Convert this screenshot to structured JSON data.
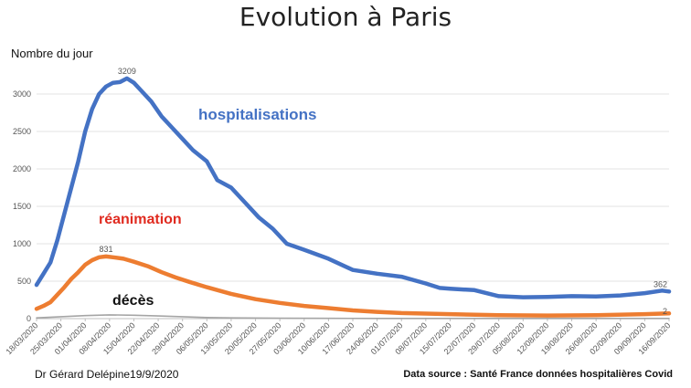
{
  "chart_data": {
    "type": "line",
    "title": "Evolution à Paris",
    "ylabel": "Nombre du jour",
    "ylim": [
      0,
      3500
    ],
    "yticks": [
      0,
      500,
      1000,
      1500,
      2000,
      2500,
      3000
    ],
    "xlim": [
      "18/03/2020",
      "16/09/2020"
    ],
    "xticks": [
      "18/03/2020",
      "25/03/2020",
      "01/04/2020",
      "08/04/2020",
      "15/04/2020",
      "22/04/2020",
      "29/04/2020",
      "06/05/2020",
      "13/05/2020",
      "20/05/2020",
      "27/05/2020",
      "03/06/2020",
      "10/06/2020",
      "17/06/2020",
      "24/06/2020",
      "01/07/2020",
      "08/07/2020",
      "15/07/2020",
      "22/07/2020",
      "29/07/2020",
      "05/08/2020",
      "12/08/2020",
      "19/08/2020",
      "26/08/2020",
      "02/09/2020",
      "09/09/2020",
      "16/09/2020"
    ],
    "grid": true,
    "series": [
      {
        "name": "hospitalisations",
        "color": "#4472C4",
        "points": [
          [
            "18/03/2020",
            450
          ],
          [
            "20/03/2020",
            600
          ],
          [
            "22/03/2020",
            750
          ],
          [
            "24/03/2020",
            1050
          ],
          [
            "26/03/2020",
            1400
          ],
          [
            "28/03/2020",
            1750
          ],
          [
            "30/03/2020",
            2100
          ],
          [
            "01/04/2020",
            2500
          ],
          [
            "03/04/2020",
            2800
          ],
          [
            "05/04/2020",
            3000
          ],
          [
            "07/04/2020",
            3100
          ],
          [
            "09/04/2020",
            3150
          ],
          [
            "11/04/2020",
            3160
          ],
          [
            "13/04/2020",
            3209
          ],
          [
            "15/04/2020",
            3150
          ],
          [
            "17/04/2020",
            3050
          ],
          [
            "20/04/2020",
            2900
          ],
          [
            "23/04/2020",
            2700
          ],
          [
            "26/04/2020",
            2550
          ],
          [
            "29/04/2020",
            2400
          ],
          [
            "02/05/2020",
            2250
          ],
          [
            "06/05/2020",
            2100
          ],
          [
            "09/05/2020",
            1850
          ],
          [
            "13/05/2020",
            1750
          ],
          [
            "17/05/2020",
            1550
          ],
          [
            "21/05/2020",
            1350
          ],
          [
            "25/05/2020",
            1200
          ],
          [
            "29/05/2020",
            1000
          ],
          [
            "03/06/2020",
            920
          ],
          [
            "10/06/2020",
            800
          ],
          [
            "17/06/2020",
            650
          ],
          [
            "24/06/2020",
            600
          ],
          [
            "01/07/2020",
            560
          ],
          [
            "08/07/2020",
            470
          ],
          [
            "12/07/2020",
            410
          ],
          [
            "15/07/2020",
            400
          ],
          [
            "22/07/2020",
            380
          ],
          [
            "29/07/2020",
            300
          ],
          [
            "05/08/2020",
            285
          ],
          [
            "12/08/2020",
            290
          ],
          [
            "19/08/2020",
            300
          ],
          [
            "26/08/2020",
            295
          ],
          [
            "02/09/2020",
            310
          ],
          [
            "09/09/2020",
            340
          ],
          [
            "14/09/2020",
            375
          ],
          [
            "16/09/2020",
            362
          ]
        ]
      },
      {
        "name": "réanimation",
        "color": "#ED7D31",
        "points": [
          [
            "18/03/2020",
            130
          ],
          [
            "20/03/2020",
            170
          ],
          [
            "22/03/2020",
            220
          ],
          [
            "24/03/2020",
            320
          ],
          [
            "26/03/2020",
            420
          ],
          [
            "28/03/2020",
            530
          ],
          [
            "30/03/2020",
            620
          ],
          [
            "01/04/2020",
            720
          ],
          [
            "03/04/2020",
            780
          ],
          [
            "05/04/2020",
            820
          ],
          [
            "07/04/2020",
            831
          ],
          [
            "09/04/2020",
            820
          ],
          [
            "12/04/2020",
            800
          ],
          [
            "15/04/2020",
            760
          ],
          [
            "19/04/2020",
            700
          ],
          [
            "23/04/2020",
            620
          ],
          [
            "27/04/2020",
            550
          ],
          [
            "01/05/2020",
            490
          ],
          [
            "06/05/2020",
            420
          ],
          [
            "13/05/2020",
            330
          ],
          [
            "20/05/2020",
            260
          ],
          [
            "27/05/2020",
            210
          ],
          [
            "03/06/2020",
            170
          ],
          [
            "10/06/2020",
            140
          ],
          [
            "17/06/2020",
            110
          ],
          [
            "24/06/2020",
            90
          ],
          [
            "01/07/2020",
            75
          ],
          [
            "15/07/2020",
            60
          ],
          [
            "29/07/2020",
            45
          ],
          [
            "12/08/2020",
            42
          ],
          [
            "26/08/2020",
            45
          ],
          [
            "09/09/2020",
            60
          ],
          [
            "16/09/2020",
            70
          ]
        ]
      },
      {
        "name": "décès",
        "color": "#A5A5A5",
        "points": [
          [
            "18/03/2020",
            10
          ],
          [
            "25/03/2020",
            25
          ],
          [
            "01/04/2020",
            40
          ],
          [
            "08/04/2020",
            50
          ],
          [
            "15/04/2020",
            45
          ],
          [
            "22/04/2020",
            35
          ],
          [
            "29/04/2020",
            25
          ],
          [
            "06/05/2020",
            15
          ],
          [
            "13/05/2020",
            10
          ],
          [
            "27/05/2020",
            6
          ],
          [
            "10/06/2020",
            4
          ],
          [
            "24/06/2020",
            3
          ],
          [
            "08/07/2020",
            2
          ],
          [
            "05/08/2020",
            2
          ],
          [
            "02/09/2020",
            2
          ],
          [
            "16/09/2020",
            2
          ]
        ]
      }
    ],
    "annotations": [
      {
        "text": "3209",
        "x": "13/04/2020",
        "y": 3209
      },
      {
        "text": "831",
        "x": "07/04/2020",
        "y": 831
      },
      {
        "text": "362",
        "x": "16/09/2020",
        "y": 362
      },
      {
        "text": "2",
        "x": "16/09/2020",
        "y": 2
      }
    ]
  },
  "footer": {
    "author": "Dr Gérard Delépine19/9/2020",
    "source": "Data source : Santé France données hospitalières Covid"
  }
}
